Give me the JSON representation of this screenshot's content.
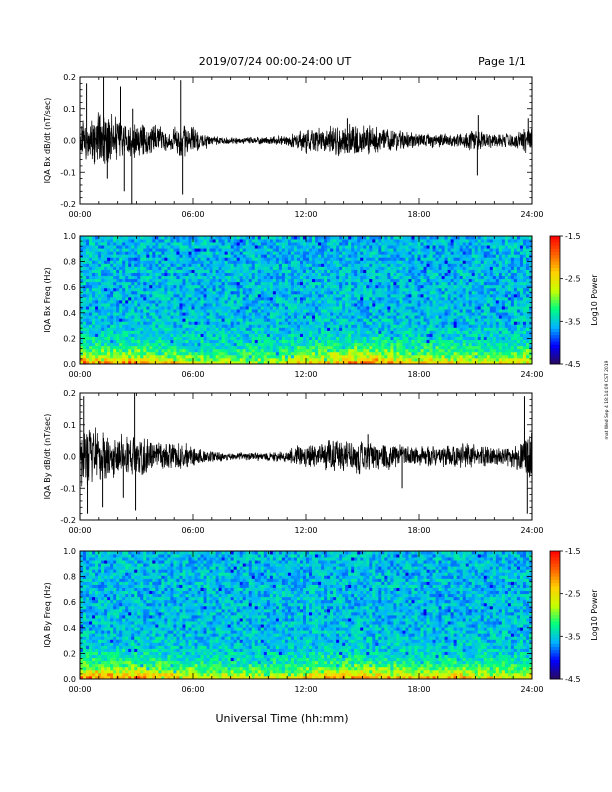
{
  "header": {
    "title": "2019/07/24  00:00-24:00 UT",
    "page": "Page 1/1"
  },
  "footer": {
    "xlabel": "Universal Time (hh:mm)"
  },
  "side_note": "mat Wed Sep 4 18:14:09 CST 2019",
  "chart_data": [
    {
      "type": "line",
      "ylabel": "IQA Bx dB/dt (nT/sec)",
      "xlim": [
        0,
        24
      ],
      "ylim": [
        -0.2,
        0.2
      ],
      "yticks": [
        "0.2",
        "0.1",
        "0.0",
        "-0.1",
        "-0.2"
      ],
      "xticks": [
        "00:00",
        "06:00",
        "12:00",
        "18:00",
        "24:00"
      ],
      "color": "#000000",
      "envelope": {
        "hours": [
          0,
          0.5,
          1,
          1.5,
          2,
          2.5,
          3,
          3.5,
          4,
          4.5,
          5,
          5.5,
          6,
          7,
          8,
          9,
          10,
          11,
          11.5,
          12,
          13,
          14,
          14.5,
          15,
          15.5,
          16,
          17,
          18,
          19,
          20,
          20.5,
          21,
          22,
          23,
          23.5,
          24
        ],
        "amp": [
          0.05,
          0.06,
          0.09,
          0.08,
          0.08,
          0.05,
          0.06,
          0.04,
          0.05,
          0.03,
          0.04,
          0.05,
          0.04,
          0.015,
          0.01,
          0.01,
          0.012,
          0.015,
          0.025,
          0.035,
          0.04,
          0.045,
          0.05,
          0.045,
          0.04,
          0.035,
          0.03,
          0.025,
          0.02,
          0.02,
          0.025,
          0.03,
          0.02,
          0.02,
          0.035,
          0.04
        ]
      },
      "spikes": [
        {
          "h": 0.35,
          "v": 0.18
        },
        {
          "h": 1.25,
          "v": 0.2
        },
        {
          "h": 1.45,
          "v": -0.12
        },
        {
          "h": 2.15,
          "v": 0.17
        },
        {
          "h": 2.35,
          "v": -0.16
        },
        {
          "h": 2.75,
          "v": -0.2
        },
        {
          "h": 2.8,
          "v": 0.1
        },
        {
          "h": 5.35,
          "v": 0.19
        },
        {
          "h": 5.45,
          "v": -0.17
        },
        {
          "h": 14.2,
          "v": 0.07
        },
        {
          "h": 21.1,
          "v": -0.11
        },
        {
          "h": 21.15,
          "v": 0.08
        },
        {
          "h": 23.8,
          "v": 0.07
        }
      ]
    },
    {
      "type": "heatmap",
      "ylabel": "IQA Bx Freq (Hz)",
      "xlim": [
        0,
        24
      ],
      "ylim": [
        0,
        1.0
      ],
      "yticks": [
        "1.0",
        "0.8",
        "0.6",
        "0.4",
        "0.2",
        "0.0"
      ],
      "xticks": [
        "00:00",
        "06:00",
        "12:00",
        "18:00",
        "24:00"
      ],
      "colorbar": {
        "label": "Log10 Power",
        "range": [
          -4.5,
          -1.5
        ],
        "ticks": [
          "-1.5",
          "-2.5",
          "-3.5",
          "-4.5"
        ],
        "colors": [
          "#2a0a5e",
          "#0000ff",
          "#00b4ff",
          "#00ff7f",
          "#c8ff00",
          "#ffd000",
          "#ff6000",
          "#ff0000"
        ]
      },
      "low_freq_activity": {
        "hours": [
          0,
          0.5,
          1,
          2,
          3,
          4,
          5,
          6,
          8,
          10,
          12,
          13,
          14,
          15,
          16,
          17,
          18,
          19,
          20,
          21,
          22,
          23,
          24
        ],
        "level": [
          0.6,
          0.5,
          0.55,
          0.5,
          0.55,
          0.45,
          0.4,
          0.35,
          0.3,
          0.3,
          0.45,
          0.5,
          0.55,
          0.65,
          0.55,
          0.5,
          0.45,
          0.45,
          0.4,
          0.4,
          0.35,
          0.4,
          0.45
        ]
      }
    },
    {
      "type": "line",
      "ylabel": "IQA By dB/dt (nT/sec)",
      "xlim": [
        0,
        24
      ],
      "ylim": [
        -0.2,
        0.2
      ],
      "yticks": [
        "0.2",
        "0.1",
        "0.0",
        "-0.1",
        "-0.2"
      ],
      "xticks": [
        "00:00",
        "06:00",
        "12:00",
        "18:00",
        "24:00"
      ],
      "color": "#000000",
      "envelope": {
        "hours": [
          0,
          0.5,
          1,
          1.5,
          2,
          2.5,
          3,
          3.5,
          4,
          4.5,
          5,
          5.5,
          6,
          7,
          8,
          9,
          10,
          11,
          11.5,
          12,
          13,
          14,
          14.5,
          15,
          15.5,
          16,
          17,
          18,
          19,
          20,
          20.5,
          21,
          22,
          23,
          23.5,
          24
        ],
        "amp": [
          0.08,
          0.09,
          0.08,
          0.07,
          0.07,
          0.06,
          0.07,
          0.05,
          0.05,
          0.04,
          0.045,
          0.04,
          0.03,
          0.015,
          0.012,
          0.012,
          0.015,
          0.02,
          0.03,
          0.04,
          0.045,
          0.05,
          0.055,
          0.05,
          0.045,
          0.04,
          0.035,
          0.03,
          0.03,
          0.035,
          0.04,
          0.035,
          0.03,
          0.035,
          0.06,
          0.07
        ]
      },
      "spikes": [
        {
          "h": 0.2,
          "v": 0.19
        },
        {
          "h": 0.4,
          "v": -0.18
        },
        {
          "h": 1.2,
          "v": -0.16
        },
        {
          "h": 2.3,
          "v": -0.13
        },
        {
          "h": 2.9,
          "v": 0.2
        },
        {
          "h": 2.95,
          "v": -0.17
        },
        {
          "h": 15.3,
          "v": 0.07
        },
        {
          "h": 17.1,
          "v": -0.1
        },
        {
          "h": 23.6,
          "v": 0.19
        },
        {
          "h": 23.75,
          "v": -0.18
        }
      ]
    },
    {
      "type": "heatmap",
      "ylabel": "IQA By Freq (Hz)",
      "xlim": [
        0,
        24
      ],
      "ylim": [
        0,
        1.0
      ],
      "yticks": [
        "1.0",
        "0.8",
        "0.6",
        "0.4",
        "0.2",
        "0.0"
      ],
      "xticks": [
        "00:00",
        "06:00",
        "12:00",
        "18:00",
        "24:00"
      ],
      "colorbar": {
        "label": "Log10 Power",
        "range": [
          -4.5,
          -1.5
        ],
        "ticks": [
          "-1.5",
          "-2.5",
          "-3.5",
          "-4.5"
        ],
        "colors": [
          "#2a0a5e",
          "#0000ff",
          "#00b4ff",
          "#00ff7f",
          "#c8ff00",
          "#ffd000",
          "#ff6000",
          "#ff0000"
        ]
      },
      "low_freq_activity": {
        "hours": [
          0,
          0.5,
          1,
          2,
          3,
          4,
          5,
          6,
          8,
          10,
          12,
          13,
          14,
          15,
          16,
          17,
          18,
          19,
          20,
          21,
          22,
          23,
          24
        ],
        "level": [
          0.7,
          0.6,
          0.65,
          0.55,
          0.6,
          0.55,
          0.45,
          0.4,
          0.35,
          0.35,
          0.45,
          0.5,
          0.55,
          0.55,
          0.5,
          0.5,
          0.45,
          0.45,
          0.5,
          0.45,
          0.4,
          0.35,
          0.45
        ]
      }
    }
  ]
}
